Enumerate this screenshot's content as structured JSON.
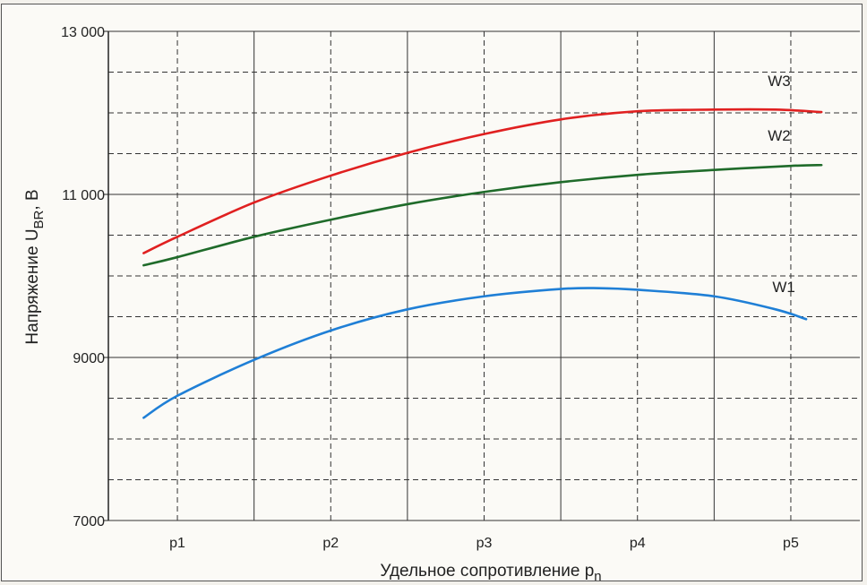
{
  "chart_data": {
    "type": "line",
    "xlabel": "Удельное сопротивление p",
    "xlabel_sub": "n",
    "ylabel": "Напряжение U",
    "ylabel_sub": "BR",
    "ylabel_unit": ", В",
    "categories": [
      "p1",
      "p2",
      "p3",
      "p4",
      "p5"
    ],
    "x_range": [
      0.55,
      5.45
    ],
    "ylim": [
      7000,
      13000
    ],
    "y_ticks": [
      7000,
      9000,
      11000,
      13000
    ],
    "y_tick_labels": [
      "7000",
      "9000",
      "11 000",
      "13 000"
    ],
    "grid": true,
    "series": [
      {
        "name": "W1",
        "color": "#1f7fd6",
        "x": [
          0.78,
          1.0,
          1.5,
          2.0,
          2.5,
          3.0,
          3.5,
          3.75,
          4.0,
          4.5,
          4.9,
          5.1
        ],
        "y": [
          8260,
          8530,
          8970,
          9330,
          9590,
          9750,
          9840,
          9850,
          9830,
          9750,
          9590,
          9470
        ]
      },
      {
        "name": "W2",
        "color": "#1f6b2a",
        "x": [
          0.78,
          1.0,
          1.5,
          2.0,
          2.5,
          3.0,
          3.5,
          4.0,
          4.5,
          5.0,
          5.2
        ],
        "y": [
          10130,
          10230,
          10480,
          10690,
          10880,
          11030,
          11150,
          11240,
          11300,
          11350,
          11360
        ]
      },
      {
        "name": "W3",
        "color": "#e02020",
        "x": [
          0.78,
          1.0,
          1.5,
          2.0,
          2.5,
          3.0,
          3.5,
          4.0,
          4.5,
          4.9,
          5.2
        ],
        "y": [
          10280,
          10480,
          10900,
          11230,
          11510,
          11740,
          11920,
          12020,
          12040,
          12040,
          12010
        ]
      }
    ],
    "series_labels": [
      {
        "name": "W3",
        "x": 4.85,
        "y": 12330
      },
      {
        "name": "W2",
        "x": 4.85,
        "y": 11660
      },
      {
        "name": "W1",
        "x": 4.88,
        "y": 9800
      }
    ]
  }
}
